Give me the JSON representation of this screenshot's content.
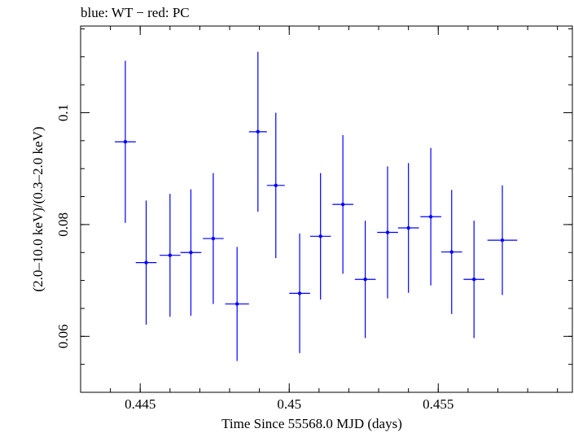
{
  "chart_data": {
    "type": "scatter",
    "title": "blue: WT − red: PC",
    "xlabel": "Time Since 55568.0 MJD (days)",
    "ylabel": "(2.0–10.0 keV)/(0.3–2.0 keV)",
    "xlim": [
      0.443,
      0.4595
    ],
    "ylim": [
      0.05,
      0.1155
    ],
    "x_ticks": [
      0.445,
      0.45,
      0.455
    ],
    "x_tick_labels": [
      "0.445",
      "0.45",
      "0.455"
    ],
    "y_ticks": [
      0.06,
      0.08,
      0.1
    ],
    "y_tick_labels": [
      "0.06",
      "0.08",
      "0.1"
    ],
    "x_minor_step": 0.001,
    "y_minor_step": 0.005,
    "grid": false,
    "series": [
      {
        "color": "#0000ff",
        "points": [
          {
            "x": 0.4445,
            "xerr": 0.00035,
            "y": 0.0948,
            "yerr_lo": 0.0145,
            "yerr_hi": 0.0145
          },
          {
            "x": 0.4452,
            "xerr": 0.00035,
            "y": 0.0732,
            "yerr_lo": 0.0111,
            "yerr_hi": 0.0111
          },
          {
            "x": 0.446,
            "xerr": 0.00035,
            "y": 0.0745,
            "yerr_lo": 0.011,
            "yerr_hi": 0.011
          },
          {
            "x": 0.4467,
            "xerr": 0.00035,
            "y": 0.075,
            "yerr_lo": 0.0113,
            "yerr_hi": 0.0113
          },
          {
            "x": 0.44745,
            "xerr": 0.00035,
            "y": 0.0775,
            "yerr_lo": 0.0117,
            "yerr_hi": 0.0117
          },
          {
            "x": 0.44825,
            "xerr": 0.0004,
            "y": 0.0658,
            "yerr_lo": 0.0102,
            "yerr_hi": 0.0102
          },
          {
            "x": 0.44895,
            "xerr": 0.0003,
            "y": 0.0966,
            "yerr_lo": 0.0143,
            "yerr_hi": 0.0143
          },
          {
            "x": 0.44955,
            "xerr": 0.0003,
            "y": 0.087,
            "yerr_lo": 0.013,
            "yerr_hi": 0.013
          },
          {
            "x": 0.45035,
            "xerr": 0.00035,
            "y": 0.0677,
            "yerr_lo": 0.0107,
            "yerr_hi": 0.0107
          },
          {
            "x": 0.45105,
            "xerr": 0.00035,
            "y": 0.0779,
            "yerr_lo": 0.0113,
            "yerr_hi": 0.0113
          },
          {
            "x": 0.4518,
            "xerr": 0.00035,
            "y": 0.0836,
            "yerr_lo": 0.0124,
            "yerr_hi": 0.0124
          },
          {
            "x": 0.45255,
            "xerr": 0.00035,
            "y": 0.0702,
            "yerr_lo": 0.0105,
            "yerr_hi": 0.0105
          },
          {
            "x": 0.4533,
            "xerr": 0.00035,
            "y": 0.0786,
            "yerr_lo": 0.0118,
            "yerr_hi": 0.0118
          },
          {
            "x": 0.454,
            "xerr": 0.00035,
            "y": 0.0794,
            "yerr_lo": 0.0116,
            "yerr_hi": 0.0116
          },
          {
            "x": 0.45475,
            "xerr": 0.00035,
            "y": 0.0814,
            "yerr_lo": 0.0123,
            "yerr_hi": 0.0123
          },
          {
            "x": 0.45545,
            "xerr": 0.00035,
            "y": 0.0751,
            "yerr_lo": 0.0111,
            "yerr_hi": 0.0111
          },
          {
            "x": 0.4562,
            "xerr": 0.00035,
            "y": 0.0702,
            "yerr_lo": 0.0105,
            "yerr_hi": 0.0105
          },
          {
            "x": 0.45715,
            "xerr": 0.0005,
            "y": 0.0772,
            "yerr_lo": 0.0098,
            "yerr_hi": 0.0098
          }
        ]
      }
    ]
  }
}
